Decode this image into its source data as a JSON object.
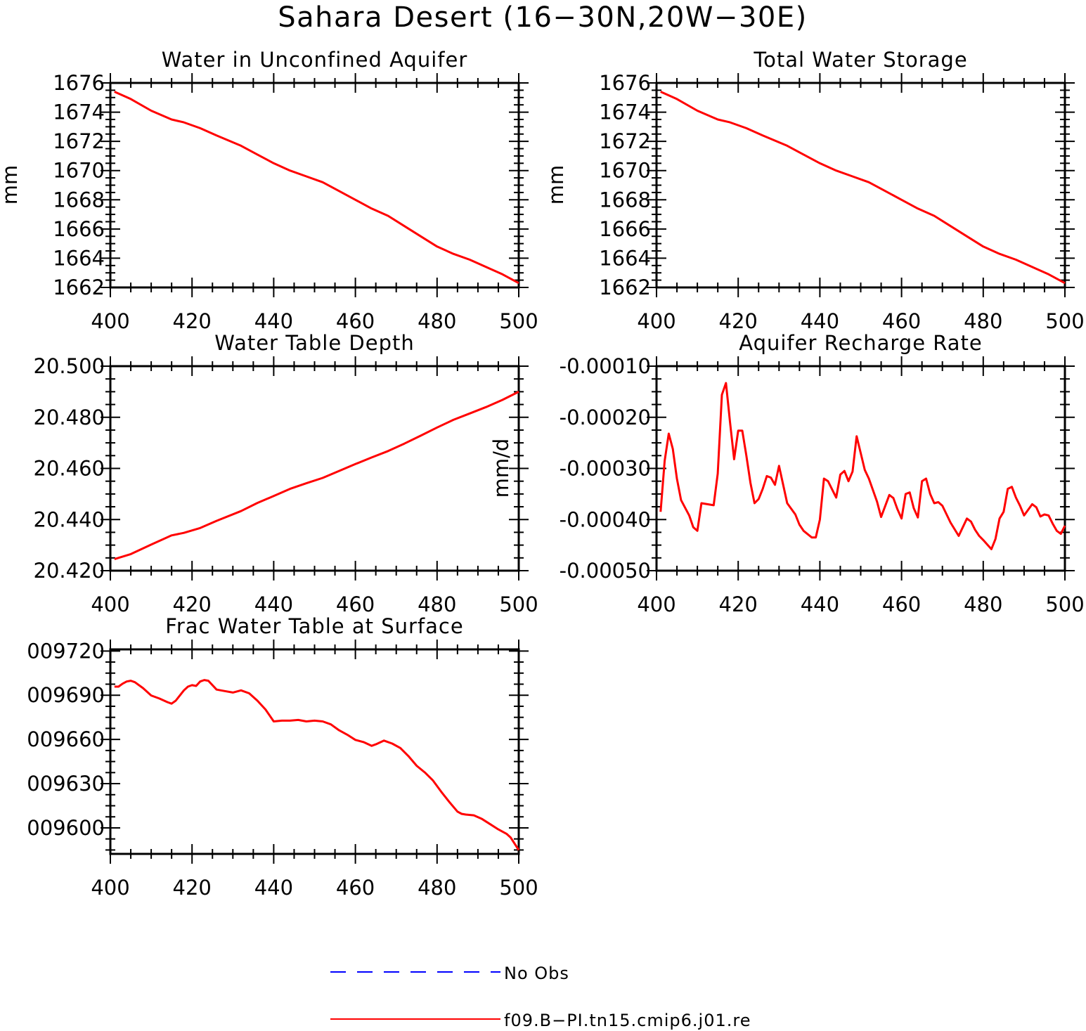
{
  "page_title": "Sahara Desert (16−30N,20W−30E)",
  "colors": {
    "model": "#ff0000",
    "obs": "#0000ff",
    "axis": "#000000"
  },
  "legend": {
    "items": [
      {
        "label": "No Obs",
        "style": "dashed",
        "color": "#0000ff"
      },
      {
        "label": "f09.B−PI.tn15.cmip6.j01.re",
        "style": "solid",
        "color": "#ff0000"
      }
    ]
  },
  "chart_data": [
    {
      "type": "line",
      "title": "Water in Unconfined Aquifer",
      "ylabel": "mm",
      "xlim": [
        400,
        500
      ],
      "ylim": [
        1662,
        1676
      ],
      "x_ticks": [
        400,
        420,
        440,
        460,
        480,
        500
      ],
      "x_tick_labels": [
        "400",
        "420",
        "440",
        "460",
        "480",
        "500"
      ],
      "y_ticks": [
        1662,
        1664,
        1666,
        1668,
        1670,
        1672,
        1674,
        1676
      ],
      "y_tick_labels": [
        "1662",
        "1664",
        "1666",
        "1668",
        "1670",
        "1672",
        "1674",
        "1676"
      ],
      "series": [
        {
          "name": "f09.B−PI.tn15.cmip6.j01.re",
          "x": [
            401,
            405,
            410,
            415,
            418,
            422,
            426,
            432,
            436,
            440,
            444,
            448,
            452,
            456,
            460,
            464,
            468,
            472,
            476,
            480,
            484,
            488,
            492,
            496,
            500
          ],
          "y": [
            1675.4,
            1674.9,
            1674.1,
            1673.5,
            1673.3,
            1672.9,
            1672.4,
            1671.7,
            1671.1,
            1670.5,
            1670.0,
            1669.6,
            1669.2,
            1668.6,
            1668.0,
            1667.4,
            1666.9,
            1666.2,
            1665.5,
            1664.8,
            1664.3,
            1663.9,
            1663.4,
            1662.9,
            1662.3
          ]
        }
      ]
    },
    {
      "type": "line",
      "title": "Total Water Storage",
      "ylabel": "mm",
      "xlim": [
        400,
        500
      ],
      "ylim": [
        1662,
        1676
      ],
      "x_ticks": [
        400,
        420,
        440,
        460,
        480,
        500
      ],
      "x_tick_labels": [
        "400",
        "420",
        "440",
        "460",
        "480",
        "500"
      ],
      "y_ticks": [
        1662,
        1664,
        1666,
        1668,
        1670,
        1672,
        1674,
        1676
      ],
      "y_tick_labels": [
        "1662",
        "1664",
        "1666",
        "1668",
        "1670",
        "1672",
        "1674",
        "1676"
      ],
      "series": [
        {
          "name": "f09.B−PI.tn15.cmip6.j01.re",
          "x": [
            401,
            405,
            410,
            415,
            418,
            422,
            426,
            432,
            436,
            440,
            444,
            448,
            452,
            456,
            460,
            464,
            468,
            472,
            476,
            480,
            484,
            488,
            492,
            496,
            500
          ],
          "y": [
            1675.4,
            1674.9,
            1674.1,
            1673.5,
            1673.3,
            1672.9,
            1672.4,
            1671.7,
            1671.1,
            1670.5,
            1670.0,
            1669.6,
            1669.2,
            1668.6,
            1668.0,
            1667.4,
            1666.9,
            1666.2,
            1665.5,
            1664.8,
            1664.3,
            1663.9,
            1663.4,
            1662.9,
            1662.3
          ]
        }
      ]
    },
    {
      "type": "line",
      "title": "Water Table Depth",
      "ylabel": "",
      "xlim": [
        400,
        500
      ],
      "ylim": [
        20.42,
        20.5
      ],
      "x_ticks": [
        400,
        420,
        440,
        460,
        480,
        500
      ],
      "x_tick_labels": [
        "400",
        "420",
        "440",
        "460",
        "480",
        "500"
      ],
      "y_ticks": [
        20.42,
        20.44,
        20.46,
        20.48,
        20.5
      ],
      "y_tick_labels": [
        "20.420",
        "20.440",
        "20.460",
        "20.480",
        "20.500"
      ],
      "series": [
        {
          "name": "f09.B−PI.tn15.cmip6.j01.re",
          "x": [
            401,
            405,
            410,
            415,
            418,
            422,
            426,
            432,
            436,
            440,
            444,
            448,
            452,
            456,
            460,
            464,
            468,
            472,
            476,
            480,
            484,
            488,
            492,
            496,
            500
          ],
          "y": [
            20.4245,
            20.4265,
            20.4302,
            20.4338,
            20.4348,
            20.4367,
            20.4395,
            20.4433,
            20.4465,
            20.4492,
            20.452,
            20.4542,
            20.4563,
            20.459,
            20.4617,
            20.4643,
            20.4668,
            20.4697,
            20.4728,
            20.476,
            20.479,
            20.4815,
            20.484,
            20.4868,
            20.49
          ]
        }
      ]
    },
    {
      "type": "line",
      "title": "Aquifer Recharge Rate",
      "ylabel": "mm/d",
      "xlim": [
        400,
        500
      ],
      "ylim": [
        -0.0005,
        -0.0001
      ],
      "x_ticks": [
        400,
        420,
        440,
        460,
        480,
        500
      ],
      "x_tick_labels": [
        "400",
        "420",
        "440",
        "460",
        "480",
        "500"
      ],
      "y_ticks": [
        -0.0005,
        -0.0004,
        -0.0003,
        -0.0002,
        -0.0001
      ],
      "y_tick_labels": [
        "-0.00050",
        "-0.00040",
        "-0.00030",
        "-0.00020",
        "-0.00010"
      ],
      "series": [
        {
          "name": "f09.B−PI.tn15.cmip6.j01.re",
          "x": [
            401,
            402,
            403,
            404,
            405,
            406,
            408,
            409,
            410,
            411,
            414,
            415,
            416,
            417,
            418,
            419,
            420,
            421,
            422,
            423,
            424,
            425,
            426,
            427,
            428,
            429,
            430,
            432,
            434,
            435,
            436,
            438,
            439,
            440,
            441,
            442,
            444,
            445,
            446,
            447,
            448,
            449,
            450,
            451,
            452,
            454,
            455,
            457,
            458,
            459,
            460,
            461,
            462,
            463,
            464,
            465,
            466,
            467,
            468,
            469,
            470,
            472,
            474,
            476,
            477,
            478,
            479,
            480,
            482,
            483,
            484,
            485,
            486,
            487,
            488,
            489,
            490,
            492,
            493,
            494,
            495,
            496,
            497,
            498,
            499,
            500
          ],
          "y": [
            -0.000385,
            -0.000285,
            -0.000232,
            -0.000262,
            -0.00032,
            -0.000362,
            -0.000392,
            -0.000415,
            -0.000422,
            -0.000368,
            -0.000372,
            -0.00031,
            -0.000156,
            -0.000133,
            -0.00021,
            -0.000282,
            -0.000226,
            -0.000226,
            -0.000275,
            -0.000328,
            -0.000368,
            -0.00036,
            -0.00034,
            -0.000315,
            -0.000318,
            -0.000332,
            -0.000295,
            -0.000368,
            -0.00039,
            -0.00041,
            -0.000422,
            -0.000435,
            -0.000435,
            -0.0004,
            -0.00032,
            -0.000325,
            -0.000357,
            -0.000312,
            -0.000305,
            -0.000325,
            -0.000306,
            -0.000237,
            -0.00027,
            -0.000303,
            -0.00032,
            -0.000365,
            -0.000395,
            -0.000352,
            -0.000358,
            -0.00038,
            -0.000398,
            -0.00035,
            -0.000347,
            -0.000378,
            -0.000396,
            -0.000325,
            -0.00032,
            -0.00035,
            -0.000368,
            -0.000366,
            -0.000373,
            -0.000406,
            -0.000432,
            -0.000398,
            -0.000404,
            -0.00042,
            -0.000432,
            -0.00044,
            -0.000458,
            -0.000438,
            -0.000398,
            -0.000385,
            -0.00034,
            -0.000336,
            -0.000357,
            -0.000373,
            -0.000392,
            -0.00037,
            -0.000376,
            -0.000394,
            -0.00039,
            -0.000392,
            -0.000408,
            -0.000422,
            -0.000428,
            -0.000412
          ]
        }
      ]
    },
    {
      "type": "line",
      "title": "Frac Water Table at Surface",
      "ylabel": "",
      "xlim": [
        400,
        500
      ],
      "ylim": [
        0.0095824,
        0.0097207
      ],
      "x_ticks": [
        400,
        420,
        440,
        460,
        480,
        500
      ],
      "x_tick_labels": [
        "400",
        "420",
        "440",
        "460",
        "480",
        "500"
      ],
      "y_ticks": [
        0.0096,
        0.0096299,
        0.0096598,
        0.0096897,
        0.0097196
      ],
      "y_tick_labels": [
        "009600",
        "009630",
        "009660",
        "009690",
        "009720"
      ],
      "series": [
        {
          "name": "f09.B−PI.tn15.cmip6.j01.re",
          "x": [
            401,
            402,
            403,
            404,
            405,
            406,
            408,
            410,
            412,
            414,
            415,
            416,
            418,
            419,
            420,
            421,
            422,
            423,
            424,
            426,
            428,
            430,
            432,
            434,
            436,
            438,
            440,
            442,
            444,
            446,
            448,
            450,
            452,
            454,
            456,
            458,
            460,
            462,
            464,
            465,
            467,
            469,
            471,
            473,
            475,
            477,
            479,
            481,
            483,
            485,
            486,
            487,
            489,
            491,
            493,
            495,
            497,
            498,
            500
          ],
          "y": [
            0.0096955,
            0.0096955,
            0.0096975,
            0.009699,
            0.0096995,
            0.0096985,
            0.0096945,
            0.0096895,
            0.0096875,
            0.009685,
            0.009684,
            0.009686,
            0.009693,
            0.0096955,
            0.0096965,
            0.009696,
            0.009699,
            0.0097,
            0.0096995,
            0.0096935,
            0.0096925,
            0.0096915,
            0.009693,
            0.009691,
            0.009686,
            0.00968,
            0.009672,
            0.0096725,
            0.0096725,
            0.009673,
            0.009672,
            0.0096725,
            0.009672,
            0.00967,
            0.009666,
            0.009663,
            0.0096595,
            0.009658,
            0.0096555,
            0.0096565,
            0.009659,
            0.009657,
            0.009654,
            0.0096485,
            0.009642,
            0.0096375,
            0.009632,
            0.0096245,
            0.0096175,
            0.009611,
            0.0096095,
            0.009609,
            0.0096085,
            0.009606,
            0.0096025,
            0.009599,
            0.009596,
            0.0095935,
            0.009585
          ]
        }
      ]
    }
  ]
}
